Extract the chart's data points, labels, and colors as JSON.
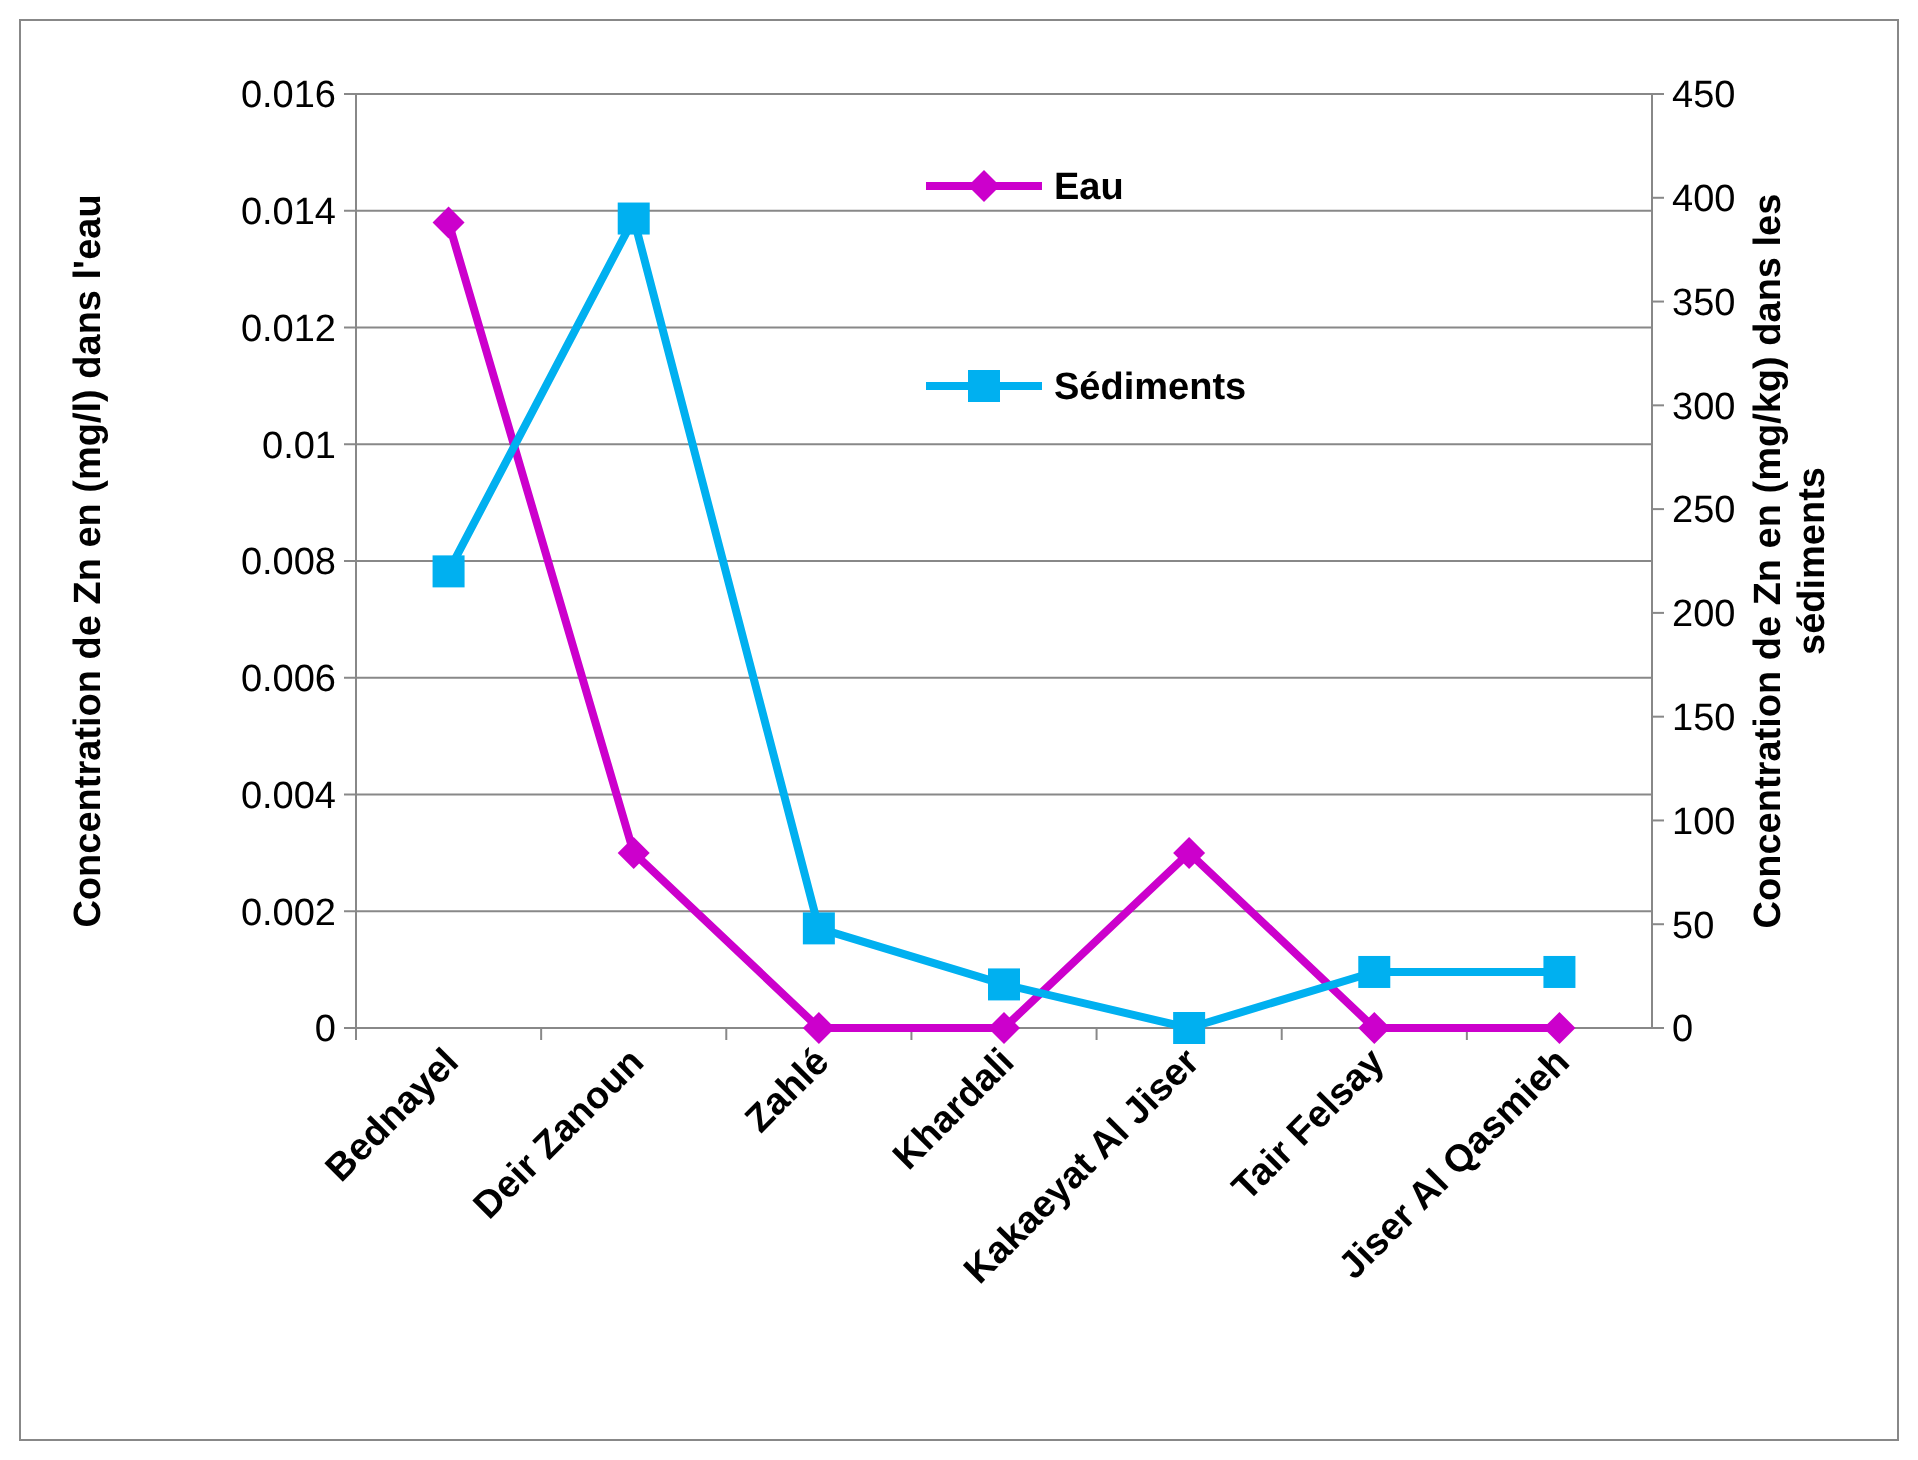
{
  "chart_data": {
    "type": "line",
    "categories": [
      "Bednayel",
      "Deir Zanoun",
      "Zahlé",
      "Khardali",
      "Kakaeyat Al Jiser",
      "Tair Felsay",
      "Jiser Al Qasmieh"
    ],
    "ylabel": "Concentration de Zn en (mg/l) dans l'eau",
    "y2label": "Concentration de Zn en (mg/kg) dans les sédiments",
    "ylim": [
      0,
      0.016
    ],
    "yticks": [
      {
        "value": 0,
        "label": "0"
      },
      {
        "value": 0.002,
        "label": "0.002"
      },
      {
        "value": 0.004,
        "label": "0.004"
      },
      {
        "value": 0.006,
        "label": "0.006"
      },
      {
        "value": 0.008,
        "label": "0.008"
      },
      {
        "value": 0.01,
        "label": "0.01"
      },
      {
        "value": 0.012,
        "label": "0.012"
      },
      {
        "value": 0.014,
        "label": "0.014"
      },
      {
        "value": 0.016,
        "label": "0.016"
      }
    ],
    "y2lim": [
      0,
      450
    ],
    "y2ticks": [
      0,
      50,
      100,
      150,
      200,
      250,
      300,
      350,
      400,
      450
    ],
    "grid": "y",
    "legend": "top",
    "series": [
      {
        "name": "Eau",
        "color": "#cc00cc",
        "marker": "diamond",
        "values": [
          0.0138,
          0.003,
          0,
          0,
          0.003,
          0,
          0
        ]
      },
      {
        "name": "Sédiments",
        "color": "#00b0f0",
        "marker": "square",
        "axis": "y2",
        "values": [
          220,
          390,
          48,
          21,
          0,
          27,
          27
        ]
      }
    ]
  }
}
